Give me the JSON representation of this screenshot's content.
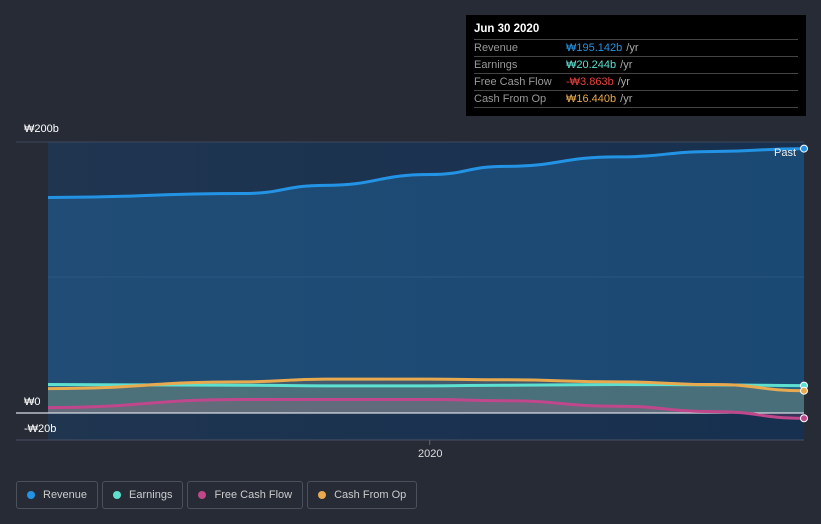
{
  "tooltip": {
    "date": "Jun 30 2020",
    "rows": [
      {
        "label": "Revenue",
        "value": "₩195.142b",
        "suffix": "/yr",
        "color": "#2394e5"
      },
      {
        "label": "Earnings",
        "value": "₩20.244b",
        "suffix": "/yr",
        "color": "#5de0d0"
      },
      {
        "label": "Free Cash Flow",
        "value": "-₩3.863b",
        "suffix": "/yr",
        "color": "#e8413f"
      },
      {
        "label": "Cash From Op",
        "value": "₩16.440b",
        "suffix": "/yr",
        "color": "#e8a94f"
      }
    ]
  },
  "chart_data": {
    "type": "line",
    "x": [
      2019.49,
      2019.75,
      2019.86,
      2020.0,
      2020.1,
      2020.25,
      2020.38,
      2020.5
    ],
    "series": [
      {
        "name": "Revenue",
        "color": "#2394e5",
        "values": [
          159,
          162,
          168,
          176,
          182,
          189,
          193,
          195.142
        ]
      },
      {
        "name": "Earnings",
        "color": "#5de0d0",
        "values": [
          21,
          20.5,
          20,
          20,
          20.5,
          21,
          20.8,
          20.244
        ]
      },
      {
        "name": "Free Cash Flow",
        "color": "#c0478b",
        "values": [
          4,
          10,
          10,
          10,
          9,
          5,
          1,
          -3.863
        ]
      },
      {
        "name": "Cash From Op",
        "color": "#e8a94f",
        "values": [
          18,
          23,
          25,
          25,
          24.5,
          23,
          21,
          16.44
        ]
      }
    ],
    "ylim": [
      -20,
      200
    ],
    "xlim": [
      2019.49,
      2020.5
    ],
    "yticks": [
      "₩200b",
      "₩0",
      "-₩20b"
    ],
    "xticks": [
      {
        "value": 2020,
        "label": "2020"
      }
    ],
    "annotation": "Past"
  },
  "legend": [
    "Revenue",
    "Earnings",
    "Free Cash Flow",
    "Cash From Op"
  ]
}
